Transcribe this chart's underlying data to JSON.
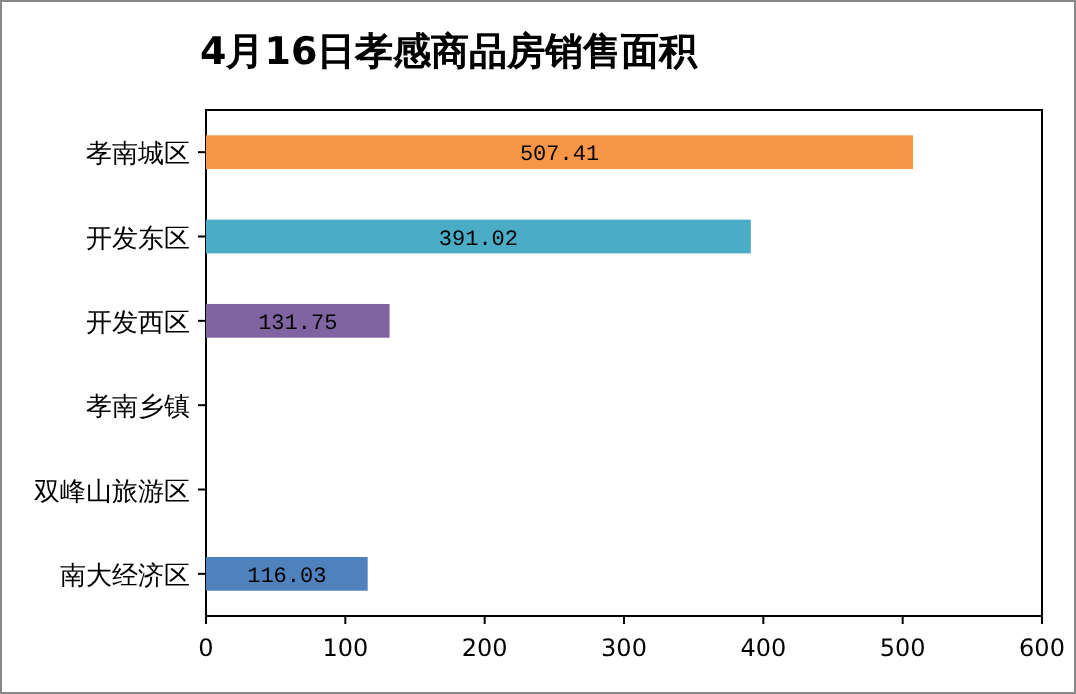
{
  "chart_data": {
    "type": "bar",
    "orientation": "horizontal",
    "title": "4月16日孝感商品房销售面积",
    "categories": [
      "孝南城区",
      "开发东区",
      "开发西区",
      "孝南乡镇",
      "双峰山旅游区",
      "南大经济区"
    ],
    "values": [
      507.41,
      391.02,
      131.75,
      null,
      null,
      116.03
    ],
    "colors": [
      "#f79646",
      "#4bacc6",
      "#8064a2",
      null,
      null,
      "#4f81bd"
    ],
    "xlim": [
      0,
      600
    ],
    "xticks": [
      0,
      100,
      200,
      300,
      400,
      500,
      600
    ],
    "data_labels": true
  }
}
